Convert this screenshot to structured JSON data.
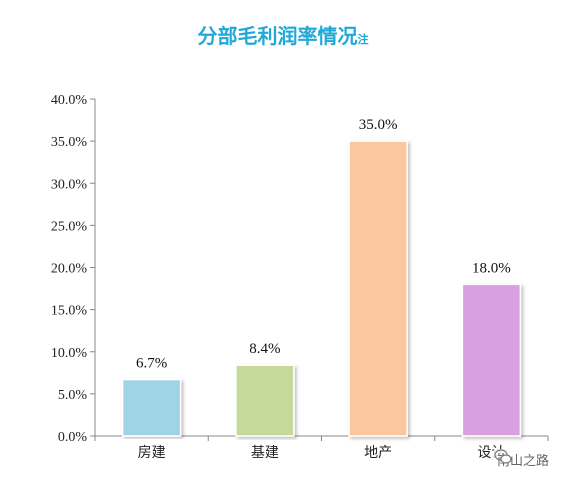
{
  "title": {
    "main": "分部毛利润率情况",
    "suffix": "注"
  },
  "watermark": {
    "text": "南山之路",
    "icon": "wechat-icon"
  },
  "chart_data": {
    "type": "bar",
    "categories": [
      "房建",
      "基建",
      "地产",
      "设计"
    ],
    "values": [
      6.7,
      8.4,
      35.0,
      18.0
    ],
    "data_labels": [
      "6.7%",
      "8.4%",
      "35.0%",
      "18.0%"
    ],
    "ylim": [
      0,
      40
    ],
    "yticks": [
      0,
      5,
      10,
      15,
      20,
      25,
      30,
      35,
      40
    ],
    "ytick_labels": [
      "0.0%",
      "5.0%",
      "10.0%",
      "15.0%",
      "20.0%",
      "25.0%",
      "30.0%",
      "35.0%",
      "40.0%"
    ],
    "colors": [
      "#9fd3e6",
      "#c4d99a",
      "#fcc79c",
      "#d9a0e0"
    ],
    "xlabel": "",
    "ylabel": "",
    "grid": false
  }
}
